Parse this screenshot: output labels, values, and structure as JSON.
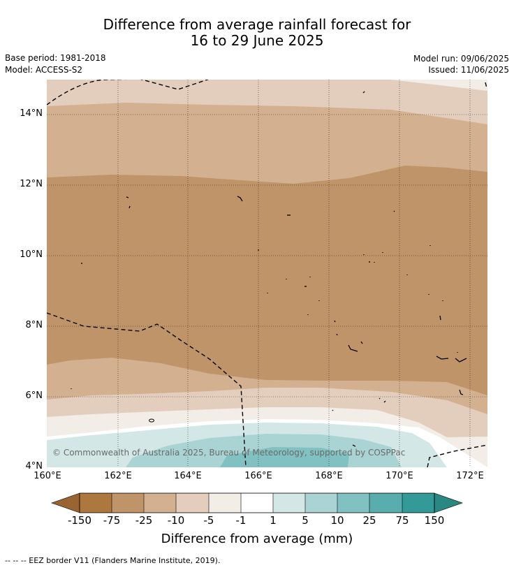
{
  "header": {
    "title_line1": "Difference from average rainfall forecast for",
    "title_line2": "16 to 29 June 2025",
    "base_period": "Base period: 1981-2018",
    "model": "Model: ACCESS-S2",
    "model_run": "Model run: 09/06/2025",
    "issued": "Issued: 11/06/2025"
  },
  "map": {
    "latitude_labels": [
      "14°N",
      "12°N",
      "10°N",
      "8°N",
      "6°N",
      "4°N"
    ],
    "longitude_labels": [
      "160°E",
      "162°E",
      "164°E",
      "166°E",
      "168°E",
      "170°E",
      "172°E"
    ],
    "copyright": "© Commonwealth of Australia 2025, Bureau of Meteorology, supported by COSPPac",
    "shading": "brown (drier than average) across most of the area, easing to near average and slightly wetter (teal) near 4-5°N",
    "gridlines": true
  },
  "colorbar": {
    "title": "Difference from average (mm)",
    "tick_labels": [
      "-150",
      "-75",
      "-25",
      "-10",
      "-5",
      "-1",
      "1",
      "5",
      "10",
      "25",
      "75",
      "150"
    ],
    "colors": [
      "#9a6332",
      "#ad783e",
      "#c09469",
      "#d3b190",
      "#e3cebd",
      "#f2ede6",
      "#ffffff",
      "#d3e7e6",
      "#aad4d4",
      "#82c1c1",
      "#59aead",
      "#339a98",
      "#2a8784"
    ]
  },
  "legend": {
    "eez_label": "--  --  -- EEZ border V11 (Flanders Marine Institute, 2019)."
  }
}
